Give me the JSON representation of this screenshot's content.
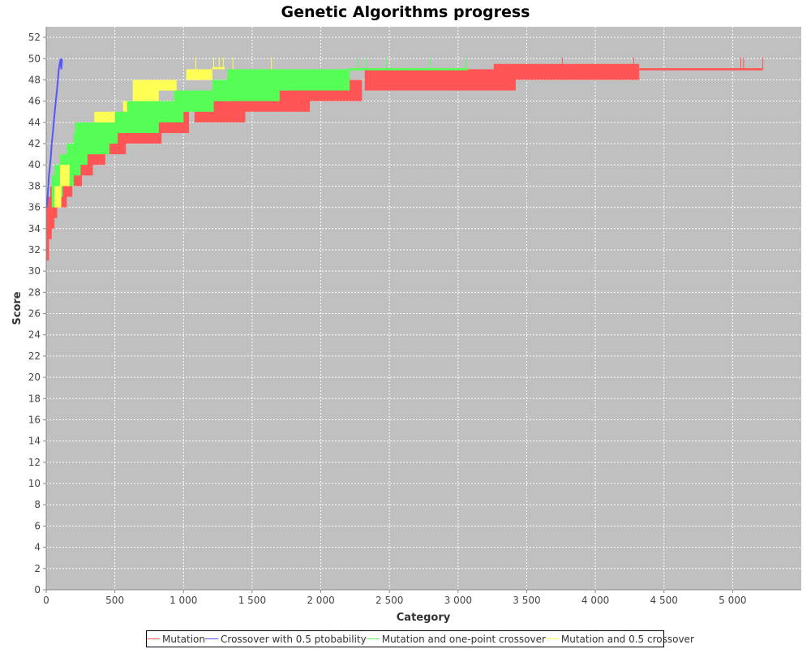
{
  "chart_data": {
    "type": "line",
    "title": "Genetic Algorithms progress",
    "xlabel": "Category",
    "ylabel": "Score",
    "xlim": [
      0,
      5500
    ],
    "ylim": [
      0,
      53
    ],
    "x_ticks": [
      0,
      500,
      1000,
      1500,
      2000,
      2500,
      3000,
      3500,
      4000,
      4500,
      5000
    ],
    "x_tick_labels": [
      "0",
      "500",
      "1 000",
      "1 500",
      "2 000",
      "2 500",
      "3 000",
      "3 500",
      "4 000",
      "4 500",
      "5 000"
    ],
    "y_ticks": [
      0,
      2,
      4,
      6,
      8,
      10,
      12,
      14,
      16,
      18,
      20,
      22,
      24,
      26,
      28,
      30,
      32,
      34,
      36,
      38,
      40,
      42,
      44,
      46,
      48,
      50,
      52
    ],
    "grid": true,
    "background": "#c0c0c0",
    "legend_position": "bottom",
    "series": [
      {
        "name": "Mutation",
        "color": "#ff5555",
        "bands": [
          {
            "x": [
              0,
              20
            ],
            "y": [
              31,
              33
            ]
          },
          {
            "x": [
              0,
              40
            ],
            "y": [
              33,
              35
            ]
          },
          {
            "x": [
              0,
              60
            ],
            "y": [
              34,
              36
            ]
          },
          {
            "x": [
              0,
              80
            ],
            "y": [
              35,
              37
            ]
          },
          {
            "x": [
              30,
              150
            ],
            "y": [
              36,
              38
            ]
          },
          {
            "x": [
              70,
              190
            ],
            "y": [
              37,
              39
            ]
          },
          {
            "x": [
              110,
              260
            ],
            "y": [
              38,
              40
            ]
          },
          {
            "x": [
              150,
              340
            ],
            "y": [
              39,
              41
            ]
          },
          {
            "x": [
              230,
              430
            ],
            "y": [
              40,
              42
            ]
          },
          {
            "x": [
              300,
              580
            ],
            "y": [
              41,
              43
            ]
          },
          {
            "x": [
              400,
              840
            ],
            "y": [
              42,
              44
            ]
          },
          {
            "x": [
              700,
              1040
            ],
            "y": [
              43,
              45
            ]
          },
          {
            "x": [
              1080,
              1450
            ],
            "y": [
              44,
              46
            ]
          },
          {
            "x": [
              1350,
              1920
            ],
            "y": [
              45,
              47
            ]
          },
          {
            "x": [
              1800,
              2300
            ],
            "y": [
              46,
              48
            ]
          },
          {
            "x": [
              2320,
              3420
            ],
            "y": [
              47,
              49
            ]
          },
          {
            "x": [
              3260,
              4320
            ],
            "y": [
              48,
              49.5
            ]
          },
          {
            "x": [
              4320,
              5220
            ],
            "y": [
              48.9,
              49.1
            ]
          }
        ],
        "spikes": [
          3760,
          4280,
          5060,
          5080,
          5220
        ]
      },
      {
        "name": "Crossover with 0.5 ptobability",
        "color": "#5555ff",
        "x": [
          5,
          15,
          20,
          28,
          35,
          40,
          48,
          55,
          62,
          70,
          78,
          85,
          92,
          98,
          105,
          110,
          115
        ],
        "y": [
          36,
          38,
          39,
          40,
          41,
          42,
          43,
          44,
          45,
          46,
          47,
          48,
          49,
          49.5,
          50,
          49,
          50
        ]
      },
      {
        "name": "Mutation and one-point crossover",
        "color": "#55ff55",
        "bands": [
          {
            "x": [
              40,
              60
            ],
            "y": [
              36,
              38
            ]
          },
          {
            "x": [
              40,
              120
            ],
            "y": [
              37,
              39
            ]
          },
          {
            "x": [
              60,
              200
            ],
            "y": [
              38,
              40
            ]
          },
          {
            "x": [
              100,
              250
            ],
            "y": [
              39,
              41
            ]
          },
          {
            "x": [
              150,
              300
            ],
            "y": [
              40,
              42
            ]
          },
          {
            "x": [
              200,
              460
            ],
            "y": [
              41,
              43
            ]
          },
          {
            "x": [
              210,
              520
            ],
            "y": [
              42,
              44
            ]
          },
          {
            "x": [
              500,
              820
            ],
            "y": [
              43,
              45
            ]
          },
          {
            "x": [
              580,
              1000
            ],
            "y": [
              44,
              46
            ]
          },
          {
            "x": [
              930,
              1220
            ],
            "y": [
              45,
              47
            ]
          },
          {
            "x": [
              1210,
              1700
            ],
            "y": [
              46,
              48
            ]
          },
          {
            "x": [
              1320,
              2210
            ],
            "y": [
              47,
              49
            ]
          },
          {
            "x": [
              2200,
              3070
            ],
            "y": [
              48.9,
              49.1
            ]
          }
        ],
        "spikes": [
          2270,
          2330,
          2480,
          2800,
          3060
        ]
      },
      {
        "name": "Mutation and 0.5 crossover",
        "color": "#ffff55",
        "bands": [
          {
            "x": [
              60,
              110
            ],
            "y": [
              36,
              38
            ]
          },
          {
            "x": [
              100,
              170
            ],
            "y": [
              38,
              40
            ]
          },
          {
            "x": [
              350,
              500
            ],
            "y": [
              44,
              45
            ]
          },
          {
            "x": [
              560,
              590
            ],
            "y": [
              45,
              46
            ]
          },
          {
            "x": [
              630,
              820
            ],
            "y": [
              46,
              48
            ]
          },
          {
            "x": [
              660,
              950
            ],
            "y": [
              47,
              48
            ]
          },
          {
            "x": [
              1020,
              1210
            ],
            "y": [
              48,
              49
            ]
          },
          {
            "x": [
              1210,
              1300
            ],
            "y": [
              49,
              49.2
            ]
          }
        ],
        "spikes": [
          1090,
          1220,
          1260,
          1290,
          1360,
          1640
        ]
      }
    ]
  }
}
